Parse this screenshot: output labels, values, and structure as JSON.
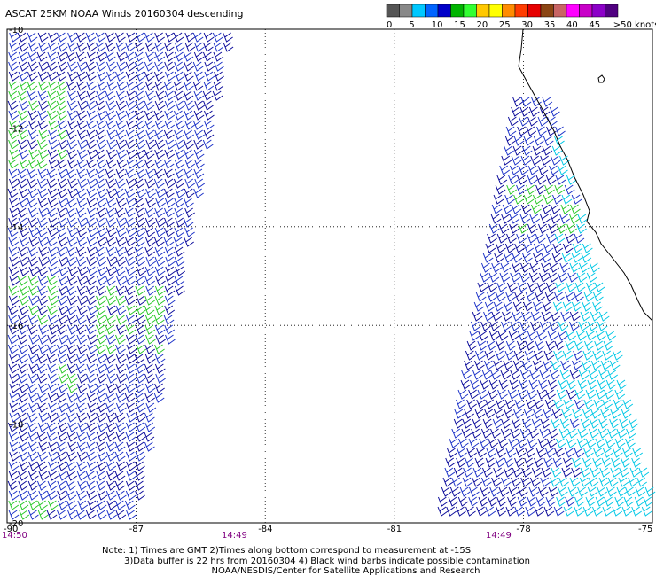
{
  "title": "ASCAT 25KM NOAA Winds 20160304 descending",
  "legend": {
    "labels": [
      "0",
      "5",
      "10",
      "15",
      "20",
      "25",
      "30",
      "35",
      "40",
      "45",
      ">50 knots"
    ],
    "colors": [
      "#555555",
      "#888888",
      "#00c8ff",
      "#0064ff",
      "#0000c8",
      "#00b400",
      "#32ff32",
      "#ffc800",
      "#ffff00",
      "#ff8c00",
      "#ff3c00",
      "#e60000",
      "#8b4513",
      "#c86464",
      "#ff00ff",
      "#c800c8",
      "#8c00c8",
      "#500080"
    ]
  },
  "map": {
    "lat_labels": [
      "-10",
      "-12",
      "-14",
      "-16",
      "-18",
      "-20"
    ],
    "lon_labels": [
      "-90",
      "-87",
      "-84",
      "-81",
      "-78",
      "-75"
    ],
    "time_labels": [
      "14:50",
      "14:49",
      "14:49"
    ]
  },
  "chart_data": {
    "type": "map",
    "title": "ASCAT 25KM NOAA Winds 20160304 descending",
    "lat_range": [
      -20,
      -10
    ],
    "lon_range": [
      -90,
      -75
    ],
    "lat_ticks": [
      -10,
      -12,
      -14,
      -16,
      -18,
      -20
    ],
    "lon_ticks": [
      -90,
      -87,
      -84,
      -81,
      -78,
      -75
    ],
    "grid": true,
    "time_labels": [
      "14:50",
      "14:49",
      "14:49"
    ],
    "wind_speed_legend_knots": [
      0,
      5,
      10,
      15,
      20,
      25,
      30,
      35,
      40,
      45,
      50
    ],
    "swaths": [
      {
        "side": "west",
        "lon_extent": [
          -90,
          -84.8
        ],
        "dominant_speed": "10-15 knots",
        "pockets": "15-20 knots"
      },
      {
        "side": "east",
        "lon_extent": [
          -80,
          -75
        ],
        "dominant_speed": "10-15 knots",
        "pockets": "15-20 knots near coast"
      }
    ]
  },
  "notes": {
    "line1": "Note: 1) Times are GMT 2)Times along bottom correspond to measurement at -15S",
    "line2": "3)Data buffer is 22 hrs from 20160304 4) Black wind barbs indicate possible contamination",
    "line3": "NOAA/NESDIS/Center for Satellite Applications and Research"
  },
  "colors": {
    "barb_blue": "#1c32c8",
    "barb_darkblue": "#0a0a9a",
    "barb_green": "#28c828",
    "barb_cyan": "#00c8e6",
    "grid": "#000000",
    "time": "#800080"
  }
}
